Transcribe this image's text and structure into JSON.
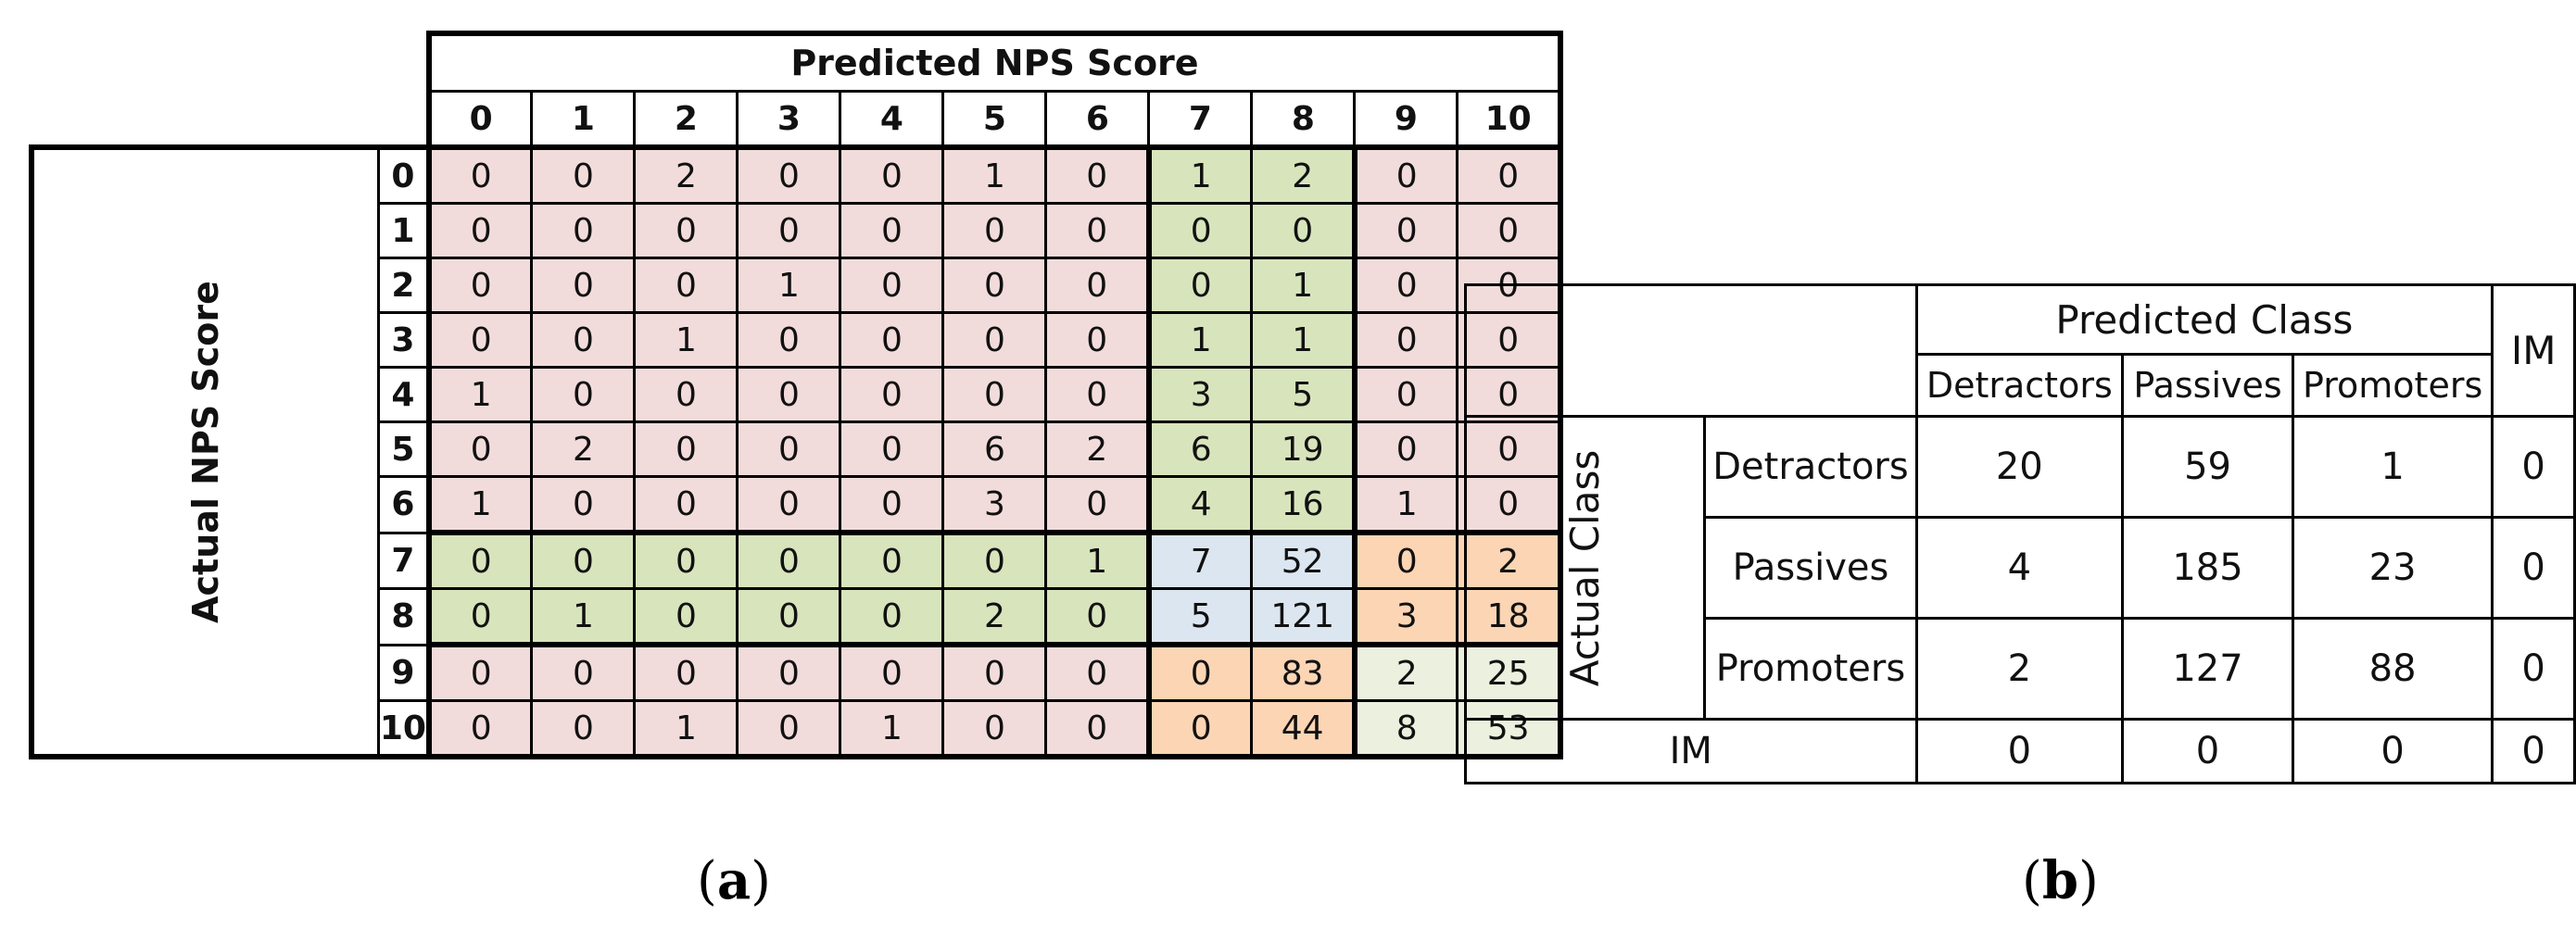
{
  "panel_a": {
    "caption_letter": "a",
    "predicted_title": "Predicted NPS Score",
    "actual_title": "Actual NPS Score"
  },
  "panel_b": {
    "caption_letter": "b",
    "predicted_title": "Predicted Class",
    "actual_title": "Actual Class",
    "im_label": "IM"
  },
  "colors": {
    "detractor_region": "#f2dcdb",
    "passive_region": "#d8e4bc",
    "passive_correct": "#dce6f1",
    "promoter_cross": "#fcd5b4",
    "promoter_correct": "#ebf1de"
  },
  "chart_data": [
    {
      "type": "table",
      "title": "Predicted NPS Score",
      "ylabel": "Actual NPS Score",
      "columns": [
        "0",
        "1",
        "2",
        "3",
        "4",
        "5",
        "6",
        "7",
        "8",
        "9",
        "10"
      ],
      "rows": [
        "0",
        "1",
        "2",
        "3",
        "4",
        "5",
        "6",
        "7",
        "8",
        "9",
        "10"
      ],
      "values": [
        [
          0,
          0,
          2,
          0,
          0,
          1,
          0,
          1,
          2,
          0,
          0
        ],
        [
          0,
          0,
          0,
          0,
          0,
          0,
          0,
          0,
          0,
          0,
          0
        ],
        [
          0,
          0,
          0,
          1,
          0,
          0,
          0,
          0,
          1,
          0,
          0
        ],
        [
          0,
          0,
          1,
          0,
          0,
          0,
          0,
          1,
          1,
          0,
          0
        ],
        [
          1,
          0,
          0,
          0,
          0,
          0,
          0,
          3,
          5,
          0,
          0
        ],
        [
          0,
          2,
          0,
          0,
          0,
          6,
          2,
          6,
          19,
          0,
          0
        ],
        [
          1,
          0,
          0,
          0,
          0,
          3,
          0,
          4,
          16,
          1,
          0
        ],
        [
          0,
          0,
          0,
          0,
          0,
          0,
          1,
          7,
          52,
          0,
          2
        ],
        [
          0,
          1,
          0,
          0,
          0,
          2,
          0,
          5,
          121,
          3,
          18
        ],
        [
          0,
          0,
          0,
          0,
          0,
          0,
          0,
          0,
          83,
          2,
          25
        ],
        [
          0,
          0,
          1,
          0,
          1,
          0,
          0,
          0,
          44,
          8,
          53
        ]
      ]
    },
    {
      "type": "table",
      "title": "Predicted Class",
      "ylabel": "Actual Class",
      "columns": [
        "Detractors",
        "Passives",
        "Promoters",
        "IM"
      ],
      "rows": [
        "Detractors",
        "Passives",
        "Promoters",
        "IM"
      ],
      "values": [
        [
          20,
          59,
          1,
          0
        ],
        [
          4,
          185,
          23,
          0
        ],
        [
          2,
          127,
          88,
          0
        ],
        [
          0,
          0,
          0,
          0
        ]
      ]
    }
  ]
}
